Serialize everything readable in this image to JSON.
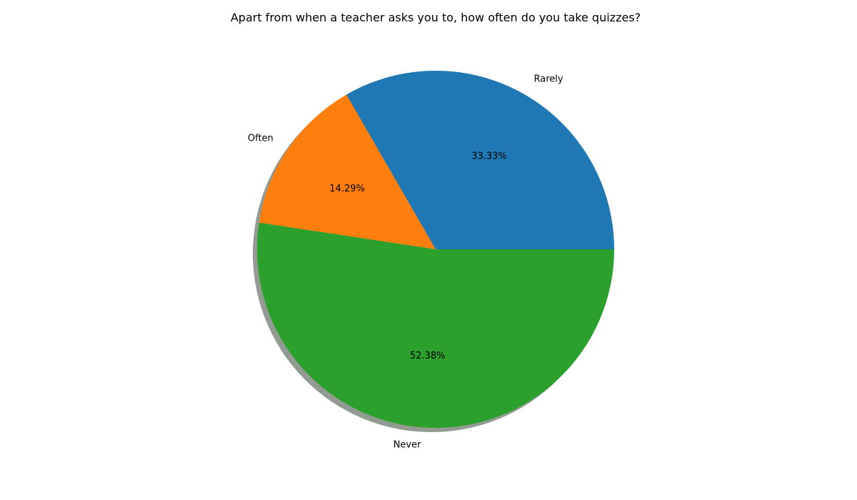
{
  "chart_data": {
    "type": "pie",
    "title": "Apart from when a teacher asks you to, how often do you take quizzes?",
    "slices": [
      {
        "label": "Rarely",
        "value": 33.33,
        "pct_label": "33.33%",
        "color": "#1f77b4"
      },
      {
        "label": "Often",
        "value": 14.29,
        "pct_label": "14.29%",
        "color": "#ff7f0e"
      },
      {
        "label": "Never",
        "value": 52.38,
        "pct_label": "52.38%",
        "color": "#2ca02c"
      }
    ],
    "shadow": true,
    "shadow_color": "#7f8a7f",
    "start_angle_deg": 0,
    "direction": "counterclockwise"
  }
}
